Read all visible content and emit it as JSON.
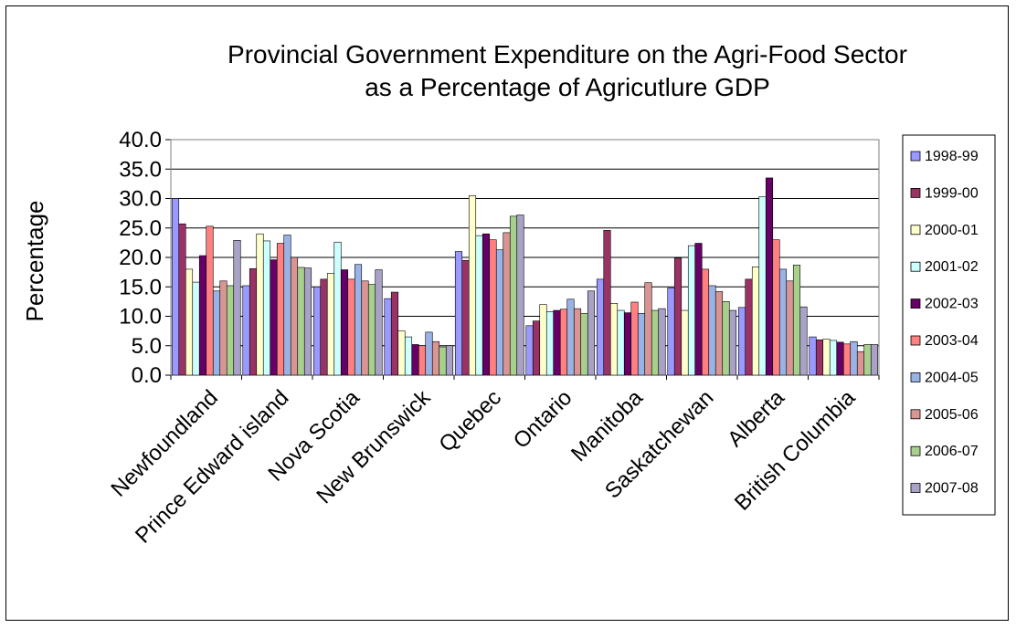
{
  "chart_data": {
    "type": "bar",
    "title": "Provincial Government Expenditure on the Agri-Food Sector",
    "subtitle": "as a Percentage of Agricutlure GDP",
    "xlabel": "",
    "ylabel": "Percentage",
    "ylim": [
      0,
      40
    ],
    "yticks": [
      "0.0",
      "5.0",
      "10.0",
      "15.0",
      "20.0",
      "25.0",
      "30.0",
      "35.0",
      "40.0"
    ],
    "grid": true,
    "legend_position": "right",
    "categories": [
      "Newfoundland",
      "Prince Edward island",
      "Nova Scotia",
      "New Brunswick",
      "Quebec",
      "Ontario",
      "Manitoba",
      "Saskatchewan",
      "Alberta",
      "British Columbia"
    ],
    "series": [
      {
        "name": "1998-99",
        "color": "#9999ff",
        "values": [
          30.0,
          15.2,
          15.0,
          13.0,
          21.0,
          8.4,
          16.3,
          14.8,
          11.5,
          6.5
        ]
      },
      {
        "name": "1999-00",
        "color": "#993366",
        "values": [
          25.7,
          18.1,
          16.3,
          14.1,
          19.5,
          9.2,
          24.6,
          19.9,
          16.3,
          6.0
        ]
      },
      {
        "name": "2000-01",
        "color": "#ffffcc",
        "values": [
          18.0,
          24.0,
          17.3,
          7.5,
          30.5,
          12.0,
          12.2,
          11.0,
          18.4,
          6.1
        ]
      },
      {
        "name": "2001-02",
        "color": "#ccffff",
        "values": [
          15.8,
          22.8,
          22.6,
          6.5,
          23.7,
          10.8,
          11.0,
          22.0,
          30.3,
          5.9
        ]
      },
      {
        "name": "2002-03",
        "color": "#660066",
        "values": [
          20.3,
          19.6,
          17.9,
          5.2,
          24.0,
          11.0,
          10.6,
          22.4,
          33.5,
          5.6
        ]
      },
      {
        "name": "2003-04",
        "color": "#ff8080",
        "values": [
          25.3,
          22.4,
          16.3,
          5.0,
          23.0,
          11.2,
          12.4,
          18.0,
          23.0,
          5.3
        ]
      },
      {
        "name": "2004-05",
        "color": "#99b3e6",
        "values": [
          14.3,
          23.8,
          18.8,
          7.3,
          21.3,
          12.9,
          10.5,
          15.2,
          18.0,
          5.7
        ]
      },
      {
        "name": "2005-06",
        "color": "#d99594",
        "values": [
          16.0,
          20.0,
          16.0,
          5.7,
          24.2,
          11.3,
          15.7,
          14.2,
          16.0,
          4.0
        ]
      },
      {
        "name": "2006-07",
        "color": "#a8d08d",
        "values": [
          15.2,
          18.3,
          15.4,
          4.8,
          27.0,
          10.5,
          11.0,
          12.5,
          18.7,
          5.2
        ]
      },
      {
        "name": "2007-08",
        "color": "#a9a2c6",
        "values": [
          22.9,
          18.2,
          17.9,
          5.0,
          27.2,
          14.3,
          11.3,
          11.0,
          11.6,
          5.2
        ]
      }
    ]
  }
}
